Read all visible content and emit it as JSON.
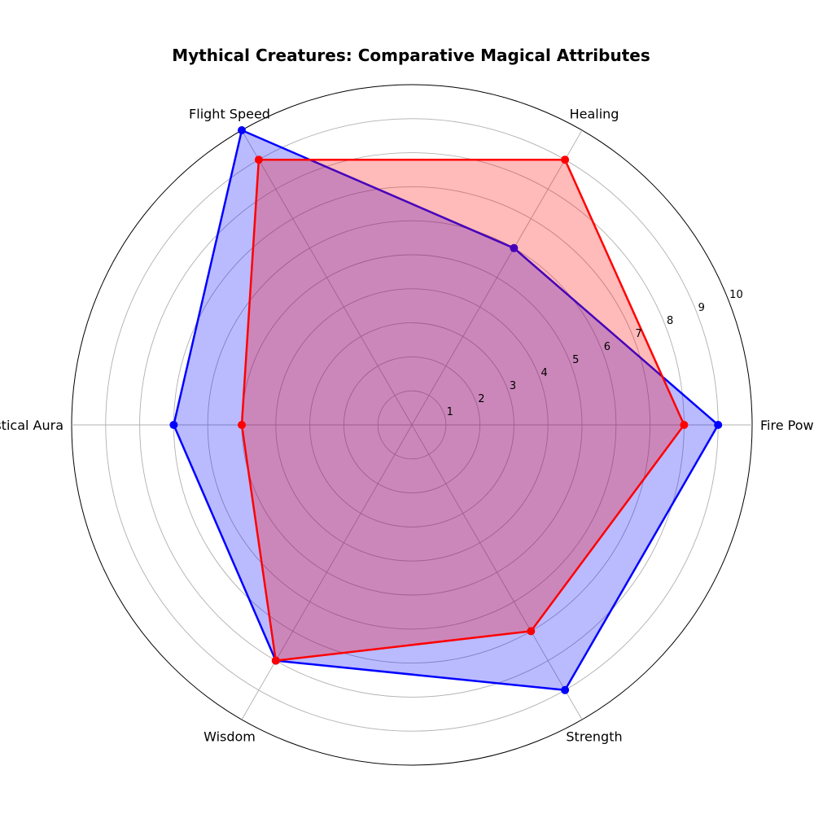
{
  "chart_data": {
    "type": "radar",
    "title": "Mythical Creatures: Comparative Magical Attributes",
    "categories": [
      "Fire Power",
      "Healing",
      "Flight Speed",
      "Mystical Aura",
      "Wisdom",
      "Strength"
    ],
    "radial_ticks": [
      "1",
      "2",
      "3",
      "4",
      "5",
      "6",
      "7",
      "8",
      "9",
      "10"
    ],
    "rlim": [
      0,
      10
    ],
    "grid": true,
    "legend": "none",
    "series": [
      {
        "values": [
          9,
          6,
          10,
          7,
          8,
          9
        ],
        "color": "#0000ff",
        "fill_color": "#0000ff",
        "fill_opacity": 0.27
      },
      {
        "values": [
          8,
          9,
          9,
          5,
          8,
          7
        ],
        "color": "#ff0000",
        "fill_color": "#ff0000",
        "fill_opacity": 0.27
      }
    ]
  }
}
